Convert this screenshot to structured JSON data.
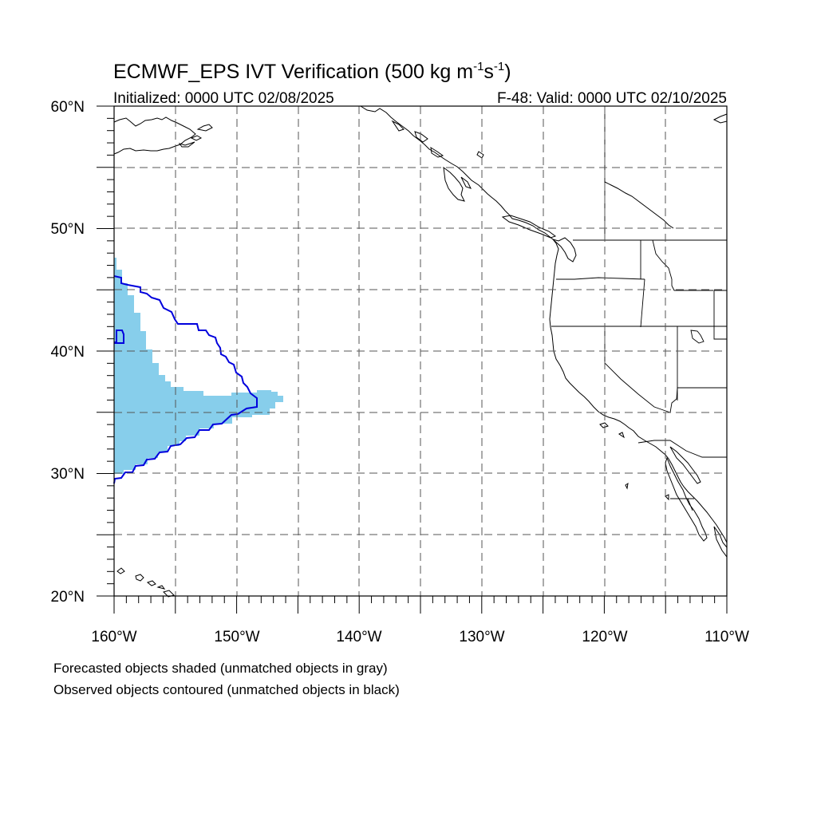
{
  "title_main": "ECMWF_EPS IVT Verification (500 kg m",
  "title_exp1": "-1",
  "title_mid": "s",
  "title_exp2": "-1",
  "title_end": ")",
  "init_label": "Initialized: 0000 UTC 02/08/2025",
  "valid_label": "F-48: Valid: 0000 UTC 02/10/2025",
  "lat_labels": [
    "60°N",
    "50°N",
    "40°N",
    "30°N",
    "20°N"
  ],
  "lon_labels": [
    "160°W",
    "150°W",
    "140°W",
    "130°W",
    "120°W",
    "110°W"
  ],
  "footnote_1": "Forecasted objects shaded (unmatched objects in gray)",
  "footnote_2": "Observed objects contoured (unmatched objects in black)",
  "colors": {
    "forecast_matched": "#87ceeb",
    "observed_matched": "#0000dd",
    "coastline": "#000000",
    "grid": "#555555"
  },
  "map_extent": {
    "lon_min": -160,
    "lon_max": -110,
    "lat_min": 20,
    "lat_max": 60
  }
}
